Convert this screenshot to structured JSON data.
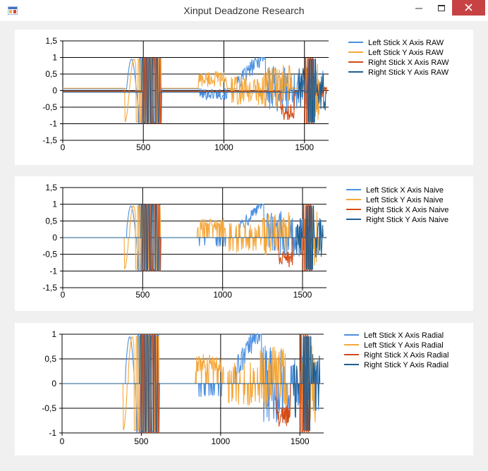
{
  "window": {
    "title": "Xinput Deadzone Research"
  },
  "colors": {
    "lx": "#4b8fe0",
    "ly": "#f5a73a",
    "rx": "#d44a13",
    "ry": "#1f5e8e"
  },
  "chart_data": [
    {
      "type": "line",
      "xlim": [
        0,
        1650
      ],
      "ylim": [
        -1.5,
        1.5
      ],
      "xticks": [
        "0",
        "500",
        "1000",
        "1500"
      ],
      "yticks": [
        "1,5",
        "1",
        "0,5",
        "0",
        "-0,5",
        "-1",
        "-1,5"
      ],
      "grid": true,
      "legend_position": "right",
      "series": [
        {
          "name": "Left Stick X Axis RAW"
        },
        {
          "name": "Left Stick Y Axis RAW"
        },
        {
          "name": "Right Stick X Axis RAW"
        },
        {
          "name": "Right Stick Y Axis RAW"
        }
      ]
    },
    {
      "type": "line",
      "xlim": [
        0,
        1650
      ],
      "ylim": [
        -1.5,
        1.5
      ],
      "xticks": [
        "0",
        "500",
        "1000",
        "1500"
      ],
      "yticks": [
        "1,5",
        "1",
        "0,5",
        "0",
        "-0,5",
        "-1",
        "-1,5"
      ],
      "grid": true,
      "legend_position": "right",
      "series": [
        {
          "name": "Left Stick X Axis Naive"
        },
        {
          "name": "Left Stick Y Axis Naive"
        },
        {
          "name": "Right Stick X Axis Naive"
        },
        {
          "name": "Right Stick Y Axis Naive"
        }
      ]
    },
    {
      "type": "line",
      "xlim": [
        0,
        1650
      ],
      "ylim": [
        -1,
        1
      ],
      "xticks": [
        "0",
        "500",
        "1000",
        "1500"
      ],
      "yticks": [
        "1",
        "0,5",
        "0",
        "-0,5",
        "-1"
      ],
      "grid": true,
      "legend_position": "right",
      "series": [
        {
          "name": "Left Stick X Axis Radial"
        },
        {
          "name": "Left Stick Y Axis Radial"
        },
        {
          "name": "Right Stick X Axis Radial"
        },
        {
          "name": "Right Stick Y Axis Radial"
        }
      ]
    }
  ]
}
